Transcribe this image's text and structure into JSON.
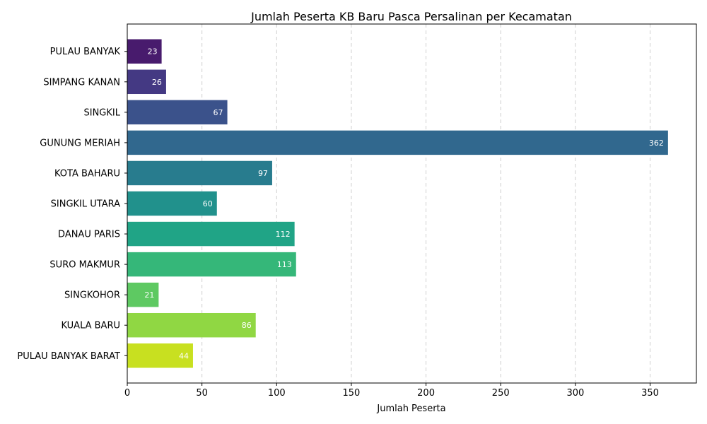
{
  "chart_data": {
    "type": "bar",
    "orientation": "horizontal",
    "title": "Jumlah Peserta KB Baru Pasca Persalinan per Kecamatan",
    "xlabel": "Jumlah Peserta",
    "ylabel": "",
    "xlim": [
      0,
      381
    ],
    "xticks": [
      0,
      50,
      100,
      150,
      200,
      250,
      300,
      350
    ],
    "grid": "x-dashed",
    "categories": [
      "PULAU BANYAK",
      "SIMPANG KANAN",
      "SINGKIL",
      "GUNUNG MERIAH",
      "KOTA BAHARU",
      "SINGKIL UTARA",
      "DANAU PARIS",
      "SURO MAKMUR",
      "SINGKOHOR",
      "KUALA BARU",
      "PULAU BANYAK BARAT"
    ],
    "values": [
      23,
      26,
      67,
      362,
      97,
      60,
      112,
      113,
      21,
      86,
      44
    ],
    "colors": [
      "#481b6d",
      "#443983",
      "#3b528b",
      "#31688e",
      "#287c8e",
      "#21918c",
      "#20a486",
      "#35b779",
      "#5ec962",
      "#90d743",
      "#c8e020"
    ]
  }
}
